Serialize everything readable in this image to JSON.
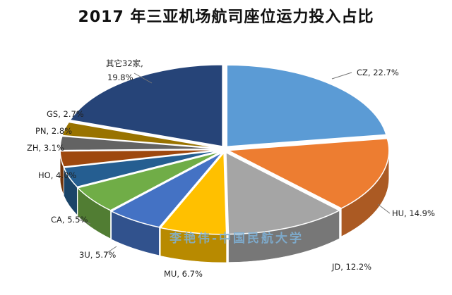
{
  "chart_data": {
    "type": "pie",
    "title": "2017 年三亚机场航司座位运力投入占比",
    "watermark": "李艳伟-中国民航大学",
    "slices": [
      {
        "name": "CZ",
        "label": "CZ, 22.7%",
        "value": 22.7,
        "color": "#5b9bd5"
      },
      {
        "name": "HU",
        "label": "HU, 14.9%",
        "value": 14.9,
        "color": "#ed7d31"
      },
      {
        "name": "JD",
        "label": "JD, 12.2%",
        "value": 12.2,
        "color": "#a5a5a5"
      },
      {
        "name": "MU",
        "label": "MU, 6.7%",
        "value": 6.7,
        "color": "#ffc000"
      },
      {
        "name": "3U",
        "label": "3U, 5.7%",
        "value": 5.7,
        "color": "#4472c4"
      },
      {
        "name": "CA",
        "label": "CA, 5.5%",
        "value": 5.5,
        "color": "#70ad47"
      },
      {
        "name": "HO",
        "label": "HO, 4.0%",
        "value": 4.0,
        "color": "#255e91"
      },
      {
        "name": "ZH",
        "label": "ZH, 3.1%",
        "value": 3.1,
        "color": "#9e480e"
      },
      {
        "name": "PN",
        "label": "PN, 2.8%",
        "value": 2.8,
        "color": "#636363"
      },
      {
        "name": "GS",
        "label": "GS, 2.7%",
        "value": 2.7,
        "color": "#997300"
      },
      {
        "name": "其它32家",
        "label": "其它32家,",
        "label2": "19.8%",
        "value": 19.8,
        "color": "#264478"
      }
    ]
  }
}
